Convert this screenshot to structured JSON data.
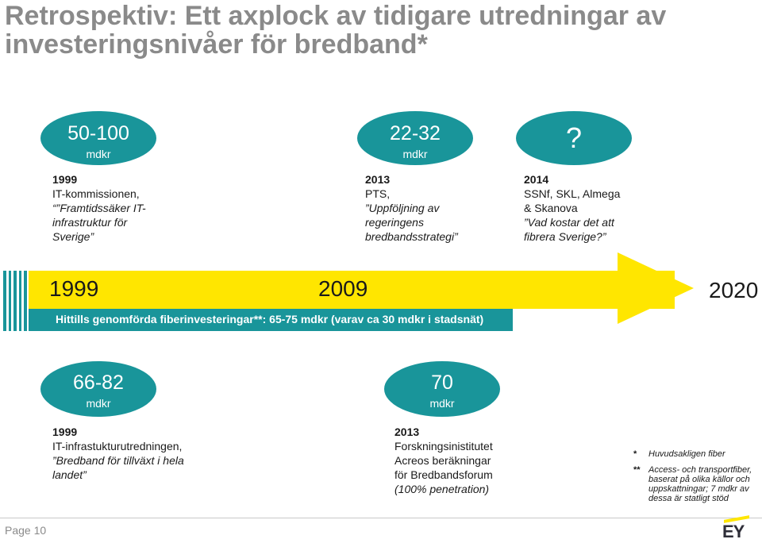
{
  "title": {
    "line1": "Retrospektiv: Ett axplock av tidigare utredningar av",
    "line2": "investeringsnivåer för bredband*"
  },
  "top_items": [
    {
      "amount": "50-100",
      "unit": "mdkr",
      "year": "1999",
      "lines": [
        "IT-kommissionen,",
        "“”Framtidssäker IT-",
        "infrastruktur för",
        "Sverige”"
      ]
    },
    {
      "amount": "22-32",
      "unit": "mdkr",
      "year": "2013",
      "lines": [
        "PTS,",
        "”Uppföljning av",
        "regeringens",
        "bredbandsstrategi”"
      ]
    },
    {
      "amount": "?",
      "unit": "",
      "year": "2014",
      "lines": [
        "SSNf, SKL, Almega",
        "& Skanova",
        "”Vad kostar det att",
        "fibrera Sverige?”"
      ]
    }
  ],
  "timeline": {
    "year_start": "1999",
    "year_mid": "2009",
    "year_end": "2020",
    "caption": "Hittills genomförda fiberinvesteringar**: 65-75 mdkr (varav ca 30 mdkr i stadsnät)"
  },
  "bottom_items": [
    {
      "amount": "66-82",
      "unit": "mdkr",
      "year": "1999",
      "lines": [
        "IT-infrastukturutredningen,",
        "”Bredband för tillväxt i hela",
        "landet”"
      ]
    },
    {
      "amount": "70",
      "unit": "mdkr",
      "year": "2013",
      "lines": [
        "Forskningsinistitutet",
        "Acreos beräkningar",
        "för Bredbandsforum",
        "(100% penetration)"
      ]
    }
  ],
  "footnotes": [
    {
      "mark": "*",
      "text": "Huvudsakligen fiber"
    },
    {
      "mark": "**",
      "text": "Access- och transportfiber, baserat på olika källor och uppskattningar; 7 mdkr av dessa är statligt stöd"
    }
  ],
  "footer": {
    "page_label": "Page 10",
    "logo_text": "EY"
  },
  "colors": {
    "teal": "#19959a",
    "yellow": "#ffe600",
    "title_gray": "#8a8a8a"
  }
}
